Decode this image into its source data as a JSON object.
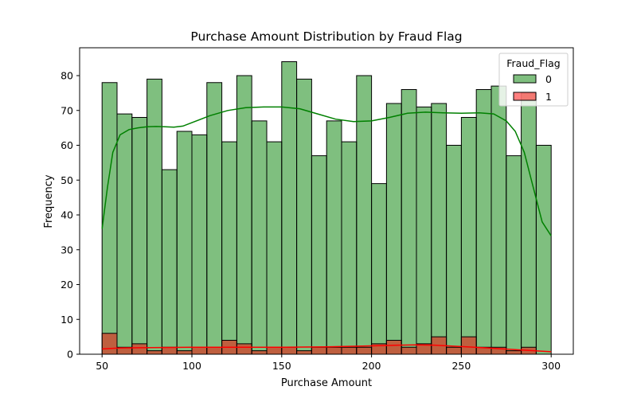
{
  "chart_data": {
    "type": "bar",
    "title": "Purchase Amount Distribution by Fraud Flag",
    "xlabel": "Purchase Amount",
    "ylabel": "Frequency",
    "xlim": [
      50,
      300
    ],
    "ylim": [
      0,
      88
    ],
    "x_ticks": [
      50,
      100,
      150,
      200,
      250,
      300
    ],
    "y_ticks": [
      0,
      10,
      20,
      30,
      40,
      50,
      60,
      70,
      80
    ],
    "bin_edges": [
      50,
      58.33,
      66.67,
      75,
      83.33,
      91.67,
      100,
      108.33,
      116.67,
      125,
      133.33,
      141.67,
      150,
      158.33,
      166.67,
      175,
      183.33,
      191.67,
      200,
      208.33,
      216.67,
      225,
      233.33,
      241.67,
      250,
      258.33,
      266.67,
      275,
      283.33,
      291.67,
      300
    ],
    "legend": {
      "title": "Fraud_Flag",
      "position": "top-right"
    },
    "grid": false,
    "series": [
      {
        "name": "0",
        "color": "#008000",
        "values": [
          78,
          69,
          68,
          79,
          53,
          64,
          63,
          78,
          61,
          80,
          67,
          61,
          84,
          79,
          57,
          67,
          61,
          80,
          49,
          72,
          76,
          71,
          72,
          60,
          68,
          76,
          77,
          57,
          75,
          60
        ],
        "kde": [
          [
            50,
            36
          ],
          [
            53,
            48
          ],
          [
            56,
            58
          ],
          [
            60,
            63
          ],
          [
            65,
            64.5
          ],
          [
            70,
            65
          ],
          [
            75,
            65.3
          ],
          [
            80,
            65.4
          ],
          [
            85,
            65.3
          ],
          [
            90,
            65.2
          ],
          [
            95,
            65.5
          ],
          [
            100,
            66.5
          ],
          [
            110,
            68.5
          ],
          [
            120,
            70
          ],
          [
            130,
            70.8
          ],
          [
            140,
            71
          ],
          [
            150,
            71
          ],
          [
            160,
            70.5
          ],
          [
            170,
            69
          ],
          [
            180,
            67.5
          ],
          [
            190,
            66.8
          ],
          [
            200,
            67
          ],
          [
            210,
            68
          ],
          [
            220,
            69.2
          ],
          [
            230,
            69.5
          ],
          [
            240,
            69.3
          ],
          [
            250,
            69.2
          ],
          [
            260,
            69.3
          ],
          [
            268,
            69
          ],
          [
            275,
            67
          ],
          [
            280,
            64
          ],
          [
            285,
            58
          ],
          [
            290,
            48
          ],
          [
            295,
            38
          ],
          [
            300,
            34
          ]
        ]
      },
      {
        "name": "1",
        "color": "#ff0000",
        "values": [
          6,
          2,
          3,
          1,
          2,
          1,
          2,
          2,
          4,
          3,
          1,
          2,
          2,
          1,
          2,
          2,
          2,
          2,
          3,
          4,
          2,
          3,
          5,
          2,
          5,
          2,
          2,
          1,
          2,
          0
        ],
        "kde": [
          [
            50,
            1.5
          ],
          [
            60,
            1.8
          ],
          [
            75,
            1.9
          ],
          [
            100,
            2.0
          ],
          [
            125,
            2.0
          ],
          [
            150,
            2.0
          ],
          [
            175,
            2.1
          ],
          [
            200,
            2.4
          ],
          [
            215,
            2.6
          ],
          [
            225,
            2.7
          ],
          [
            235,
            2.6
          ],
          [
            250,
            2.2
          ],
          [
            265,
            1.8
          ],
          [
            280,
            1.3
          ],
          [
            300,
            0.7
          ]
        ]
      }
    ]
  }
}
